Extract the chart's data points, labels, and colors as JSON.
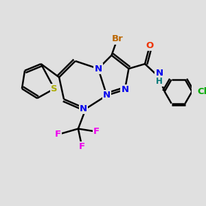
{
  "bg_color": "#e0e0e0",
  "bond_color": "#000000",
  "bond_width": 1.8,
  "atoms": {
    "S": {
      "color": "#aaaa00"
    },
    "N": {
      "color": "#0000ee"
    },
    "O": {
      "color": "#ee3300"
    },
    "Br": {
      "color": "#bb6600"
    },
    "F": {
      "color": "#ee00ee"
    },
    "Cl": {
      "color": "#00aa00"
    },
    "H": {
      "color": "#007777"
    },
    "C": {
      "color": "#000000"
    }
  },
  "fontsize": 9.5,
  "xlim": [
    0,
    10
  ],
  "ylim": [
    0,
    10
  ]
}
